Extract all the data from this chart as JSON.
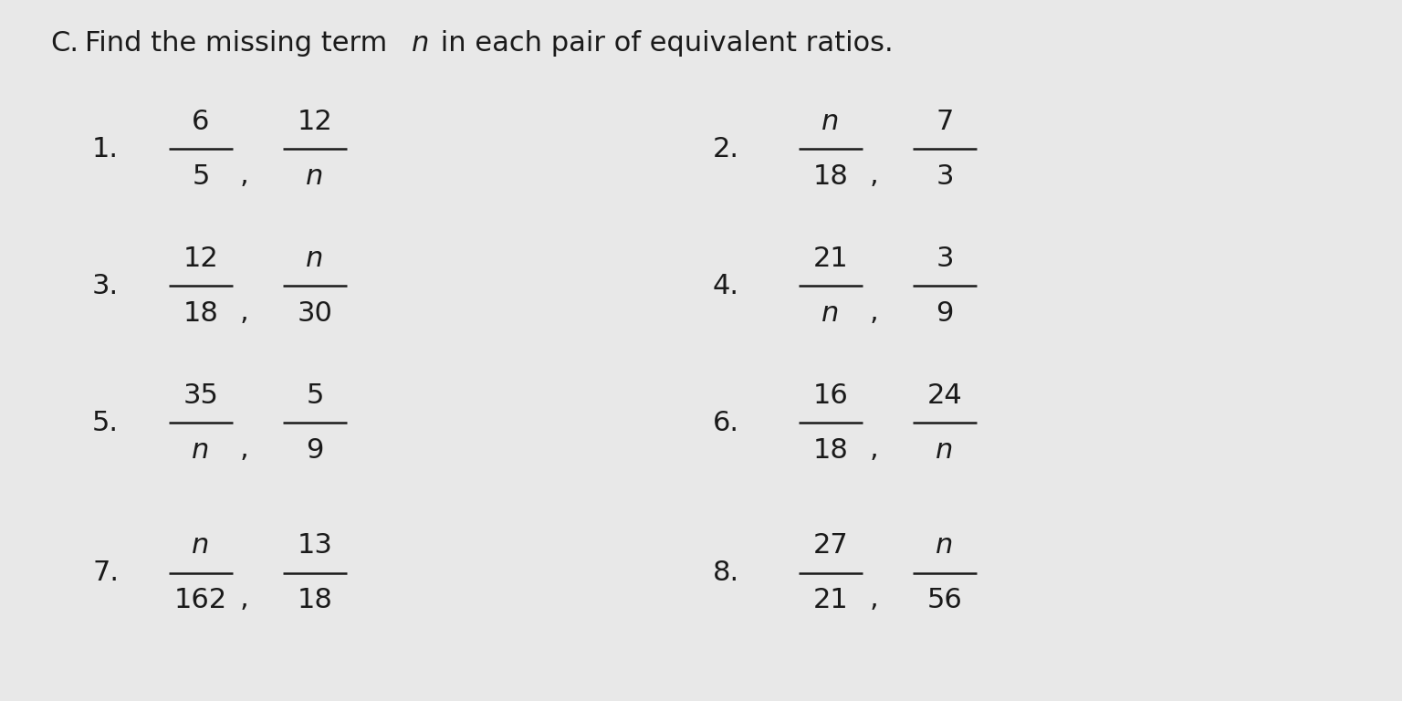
{
  "title_C": "C.",
  "title_text": "Find the missing term ",
  "title_n": "n",
  "title_rest": " in each pair of equivalent ratios.",
  "background_color": "#c8c8c8",
  "paper_color": "#e8e8e8",
  "text_color": "#1a1a1a",
  "title_fontsize": 22,
  "label_fontsize": 22,
  "number_fontsize": 22,
  "problems": [
    {
      "number": "1.",
      "col": 0,
      "row": 0,
      "frac1_num": "6",
      "frac1_den": "5",
      "frac1_n_num": false,
      "frac1_n_den": false,
      "frac2_num": "12",
      "frac2_den": "n",
      "frac2_n_num": false,
      "frac2_n_den": true
    },
    {
      "number": "2.",
      "col": 1,
      "row": 0,
      "frac1_num": "n",
      "frac1_den": "18",
      "frac1_n_num": true,
      "frac1_n_den": false,
      "frac2_num": "7",
      "frac2_den": "3",
      "frac2_n_num": false,
      "frac2_n_den": false
    },
    {
      "number": "3.",
      "col": 0,
      "row": 1,
      "frac1_num": "12",
      "frac1_den": "18",
      "frac1_n_num": false,
      "frac1_n_den": false,
      "frac2_num": "n",
      "frac2_den": "30",
      "frac2_n_num": true,
      "frac2_n_den": false
    },
    {
      "number": "4.",
      "col": 1,
      "row": 1,
      "frac1_num": "21",
      "frac1_den": "n",
      "frac1_n_num": false,
      "frac1_n_den": true,
      "frac2_num": "3",
      "frac2_den": "9",
      "frac2_n_num": false,
      "frac2_n_den": false
    },
    {
      "number": "5.",
      "col": 0,
      "row": 2,
      "frac1_num": "35",
      "frac1_den": "n",
      "frac1_n_num": false,
      "frac1_n_den": true,
      "frac2_num": "5",
      "frac2_den": "9",
      "frac2_n_num": false,
      "frac2_n_den": false
    },
    {
      "number": "6.",
      "col": 1,
      "row": 2,
      "frac1_num": "16",
      "frac1_den": "18",
      "frac1_n_num": false,
      "frac1_n_den": false,
      "frac2_num": "24",
      "frac2_den": "n",
      "frac2_n_num": false,
      "frac2_n_den": true
    },
    {
      "number": "7.",
      "col": 0,
      "row": 3,
      "frac1_num": "n",
      "frac1_den": "162",
      "frac1_n_num": true,
      "frac1_n_den": false,
      "frac2_num": "13",
      "frac2_den": "18",
      "frac2_n_num": false,
      "frac2_n_den": false
    },
    {
      "number": "8.",
      "col": 1,
      "row": 3,
      "frac1_num": "27",
      "frac1_den": "21",
      "frac1_n_num": false,
      "frac1_n_den": false,
      "frac2_num": "n",
      "frac2_den": "56",
      "frac2_n_num": true,
      "frac2_n_den": false
    }
  ]
}
